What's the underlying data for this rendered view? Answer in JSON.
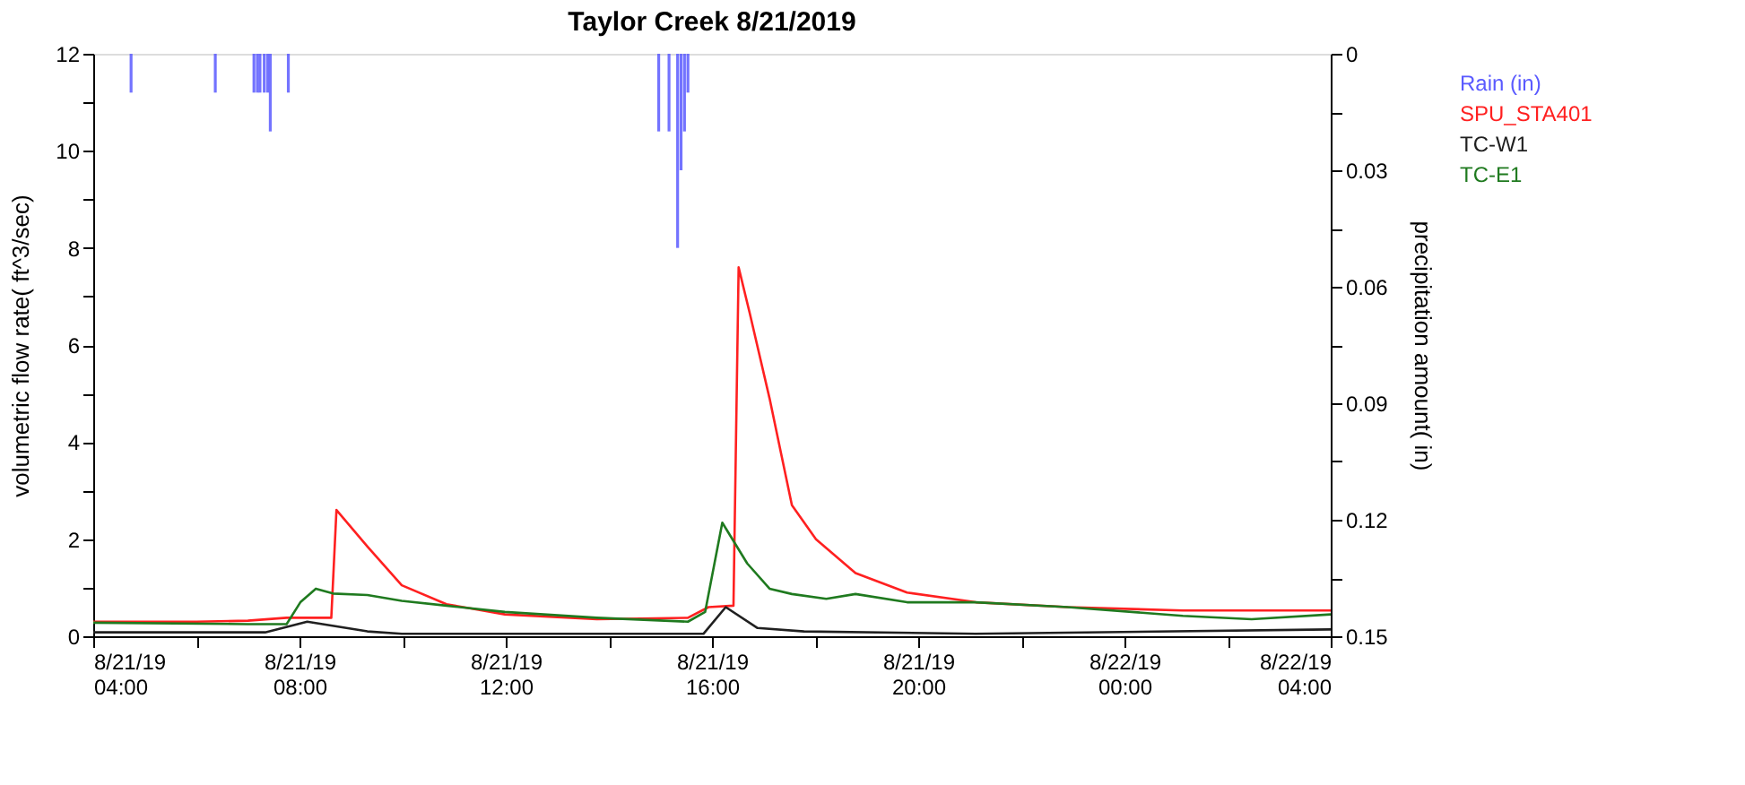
{
  "chart_data": {
    "type": "line",
    "title": "Taylor Creek 8/21/2019",
    "ylabel": "volumetric flow rate( ft^3/sec)",
    "y2label": "precipitation amount( in)",
    "xlim": [
      "2019-08-21T04:00",
      "2019-08-22T04:00"
    ],
    "xticks": [
      {
        "value": "2019-08-21T04:00",
        "label": "8/21/19 04:00"
      },
      {
        "value": "2019-08-21T06:00",
        "label": null
      },
      {
        "value": "2019-08-21T08:00",
        "label": "8/21/19 08:00"
      },
      {
        "value": "2019-08-21T10:00",
        "label": null
      },
      {
        "value": "2019-08-21T12:00",
        "label": "8/21/19 12:00"
      },
      {
        "value": "2019-08-21T14:00",
        "label": null
      },
      {
        "value": "2019-08-21T16:00",
        "label": "8/21/19 16:00"
      },
      {
        "value": "2019-08-21T18:00",
        "label": null
      },
      {
        "value": "2019-08-21T20:00",
        "label": "8/21/19 20:00"
      },
      {
        "value": "2019-08-21T22:00",
        "label": null
      },
      {
        "value": "2019-08-22T00:00",
        "label": "8/22/19 00:00"
      },
      {
        "value": "2019-08-22T02:00",
        "label": null
      },
      {
        "value": "2019-08-22T04:00",
        "label": "8/22/19 04:00"
      }
    ],
    "ylim": [
      0,
      12
    ],
    "yticks": [
      0,
      {
        "value": 1,
        "label": null
      },
      2,
      {
        "value": 3,
        "label": null
      },
      4,
      {
        "value": 5,
        "label": null
      },
      6,
      {
        "value": 7,
        "label": null
      },
      8,
      {
        "value": 9,
        "label": null
      },
      10,
      {
        "value": 11,
        "label": null
      },
      12
    ],
    "y2lim": [
      0.15,
      0
    ],
    "y2ticks": [
      0,
      {
        "value": 0.015,
        "label": null
      },
      0.03,
      {
        "value": 0.045,
        "label": null
      },
      0.06,
      {
        "value": 0.075,
        "label": null
      },
      0.09,
      {
        "value": 0.105,
        "label": null
      },
      0.12,
      {
        "value": 0.135,
        "label": null
      },
      0.15
    ],
    "grid": false,
    "legend": "top right",
    "series": [
      {
        "name": "Rain (in)",
        "type": "bar",
        "axis": "y2",
        "color": "#5a5aff",
        "x": [
          "2019-08-21T04:44",
          "2019-08-21T06:22",
          "2019-08-21T07:07",
          "2019-08-21T07:11",
          "2019-08-21T07:14",
          "2019-08-21T07:19",
          "2019-08-21T07:23",
          "2019-08-21T07:26",
          "2019-08-21T07:47",
          "2019-08-21T14:58",
          "2019-08-21T15:10",
          "2019-08-21T15:20",
          "2019-08-21T15:24",
          "2019-08-21T15:28",
          "2019-08-21T15:32"
        ],
        "values": [
          0.01,
          0.01,
          0.01,
          0.01,
          0.01,
          0.01,
          0.01,
          0.02,
          0.01,
          0.02,
          0.02,
          0.05,
          0.03,
          0.02,
          0.01
        ]
      },
      {
        "name": "SPU_STA401",
        "color": "#ff2020",
        "x": [
          "2019-08-21T04:00",
          "2019-08-21T06:00",
          "2019-08-21T07:00",
          "2019-08-21T07:45",
          "2019-08-21T08:37",
          "2019-08-21T08:43",
          "2019-08-21T09:19",
          "2019-08-21T09:59",
          "2019-08-21T10:51",
          "2019-08-21T11:59",
          "2019-08-21T13:46",
          "2019-08-21T15:32",
          "2019-08-21T15:56",
          "2019-08-21T16:25",
          "2019-08-21T16:31",
          "2019-08-21T16:44",
          "2019-08-21T17:07",
          "2019-08-21T17:33",
          "2019-08-21T18:01",
          "2019-08-21T18:47",
          "2019-08-21T19:47",
          "2019-08-21T21:07",
          "2019-08-21T22:54",
          "2019-08-22T01:08",
          "2019-08-22T04:00"
        ],
        "values": [
          0.3,
          0.3,
          0.32,
          0.38,
          0.38,
          2.6,
          1.85,
          1.05,
          0.66,
          0.45,
          0.35,
          0.38,
          0.6,
          0.63,
          7.6,
          6.65,
          4.9,
          2.7,
          2.0,
          1.3,
          0.9,
          0.7,
          0.6,
          0.53,
          0.53
        ]
      },
      {
        "name": "TC-W1",
        "color": "#202020",
        "x": [
          "2019-08-21T04:00",
          "2019-08-21T07:20",
          "2019-08-21T08:09",
          "2019-08-21T09:19",
          "2019-08-21T09:59",
          "2019-08-21T15:50",
          "2019-08-21T16:16",
          "2019-08-21T16:53",
          "2019-08-21T17:47",
          "2019-08-21T21:07",
          "2019-08-22T04:00"
        ],
        "values": [
          0.08,
          0.08,
          0.3,
          0.1,
          0.05,
          0.05,
          0.6,
          0.17,
          0.1,
          0.05,
          0.14
        ]
      },
      {
        "name": "TC-E1",
        "color": "#1f7a1f",
        "x": [
          "2019-08-21T04:00",
          "2019-08-21T07:00",
          "2019-08-21T07:45",
          "2019-08-21T08:01",
          "2019-08-21T08:19",
          "2019-08-21T08:39",
          "2019-08-21T09:19",
          "2019-08-21T09:59",
          "2019-08-21T10:51",
          "2019-08-21T11:59",
          "2019-08-21T13:46",
          "2019-08-21T15:32",
          "2019-08-21T15:52",
          "2019-08-21T16:12",
          "2019-08-21T16:41",
          "2019-08-21T17:07",
          "2019-08-21T17:33",
          "2019-08-21T18:13",
          "2019-08-21T18:47",
          "2019-08-21T19:47",
          "2019-08-21T21:07",
          "2019-08-21T22:54",
          "2019-08-22T01:08",
          "2019-08-22T02:28",
          "2019-08-22T04:00"
        ],
        "values": [
          0.28,
          0.25,
          0.25,
          0.7,
          0.98,
          0.88,
          0.85,
          0.73,
          0.63,
          0.5,
          0.38,
          0.3,
          0.5,
          2.34,
          1.5,
          0.98,
          0.87,
          0.77,
          0.87,
          0.7,
          0.7,
          0.6,
          0.42,
          0.35,
          0.45
        ]
      }
    ]
  }
}
